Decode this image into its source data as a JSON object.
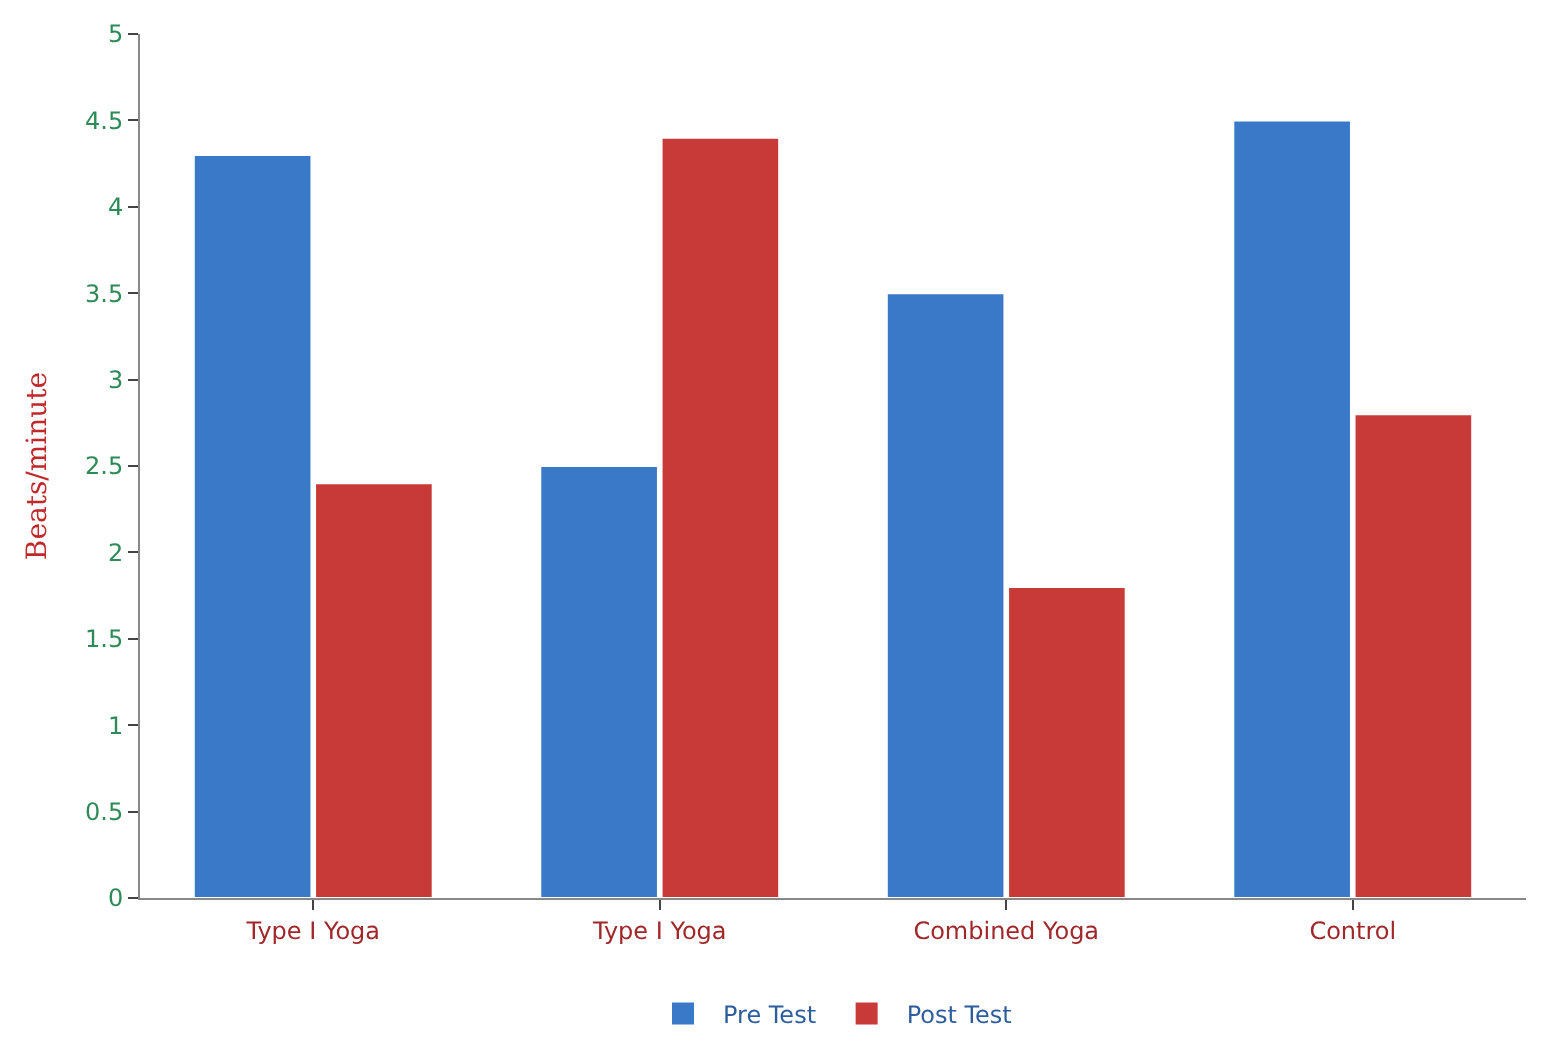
{
  "chart_data": {
    "type": "bar",
    "ylabel": "Beats/minute",
    "categories": [
      "Type I Yoga",
      "Type I Yoga",
      "Combined Yoga",
      "Control"
    ],
    "series": [
      {
        "name": "Pre Test",
        "color": "#3a78c8",
        "values": [
          4.3,
          2.5,
          3.5,
          4.5
        ]
      },
      {
        "name": "Post Test",
        "color": "#c83a38",
        "values": [
          2.4,
          4.4,
          1.8,
          2.8
        ]
      }
    ],
    "ylim": [
      0,
      5
    ],
    "yticks": [
      0,
      0.5,
      1,
      1.5,
      2,
      2.5,
      3,
      3.5,
      4,
      4.5,
      5
    ],
    "legend": "bottom"
  }
}
